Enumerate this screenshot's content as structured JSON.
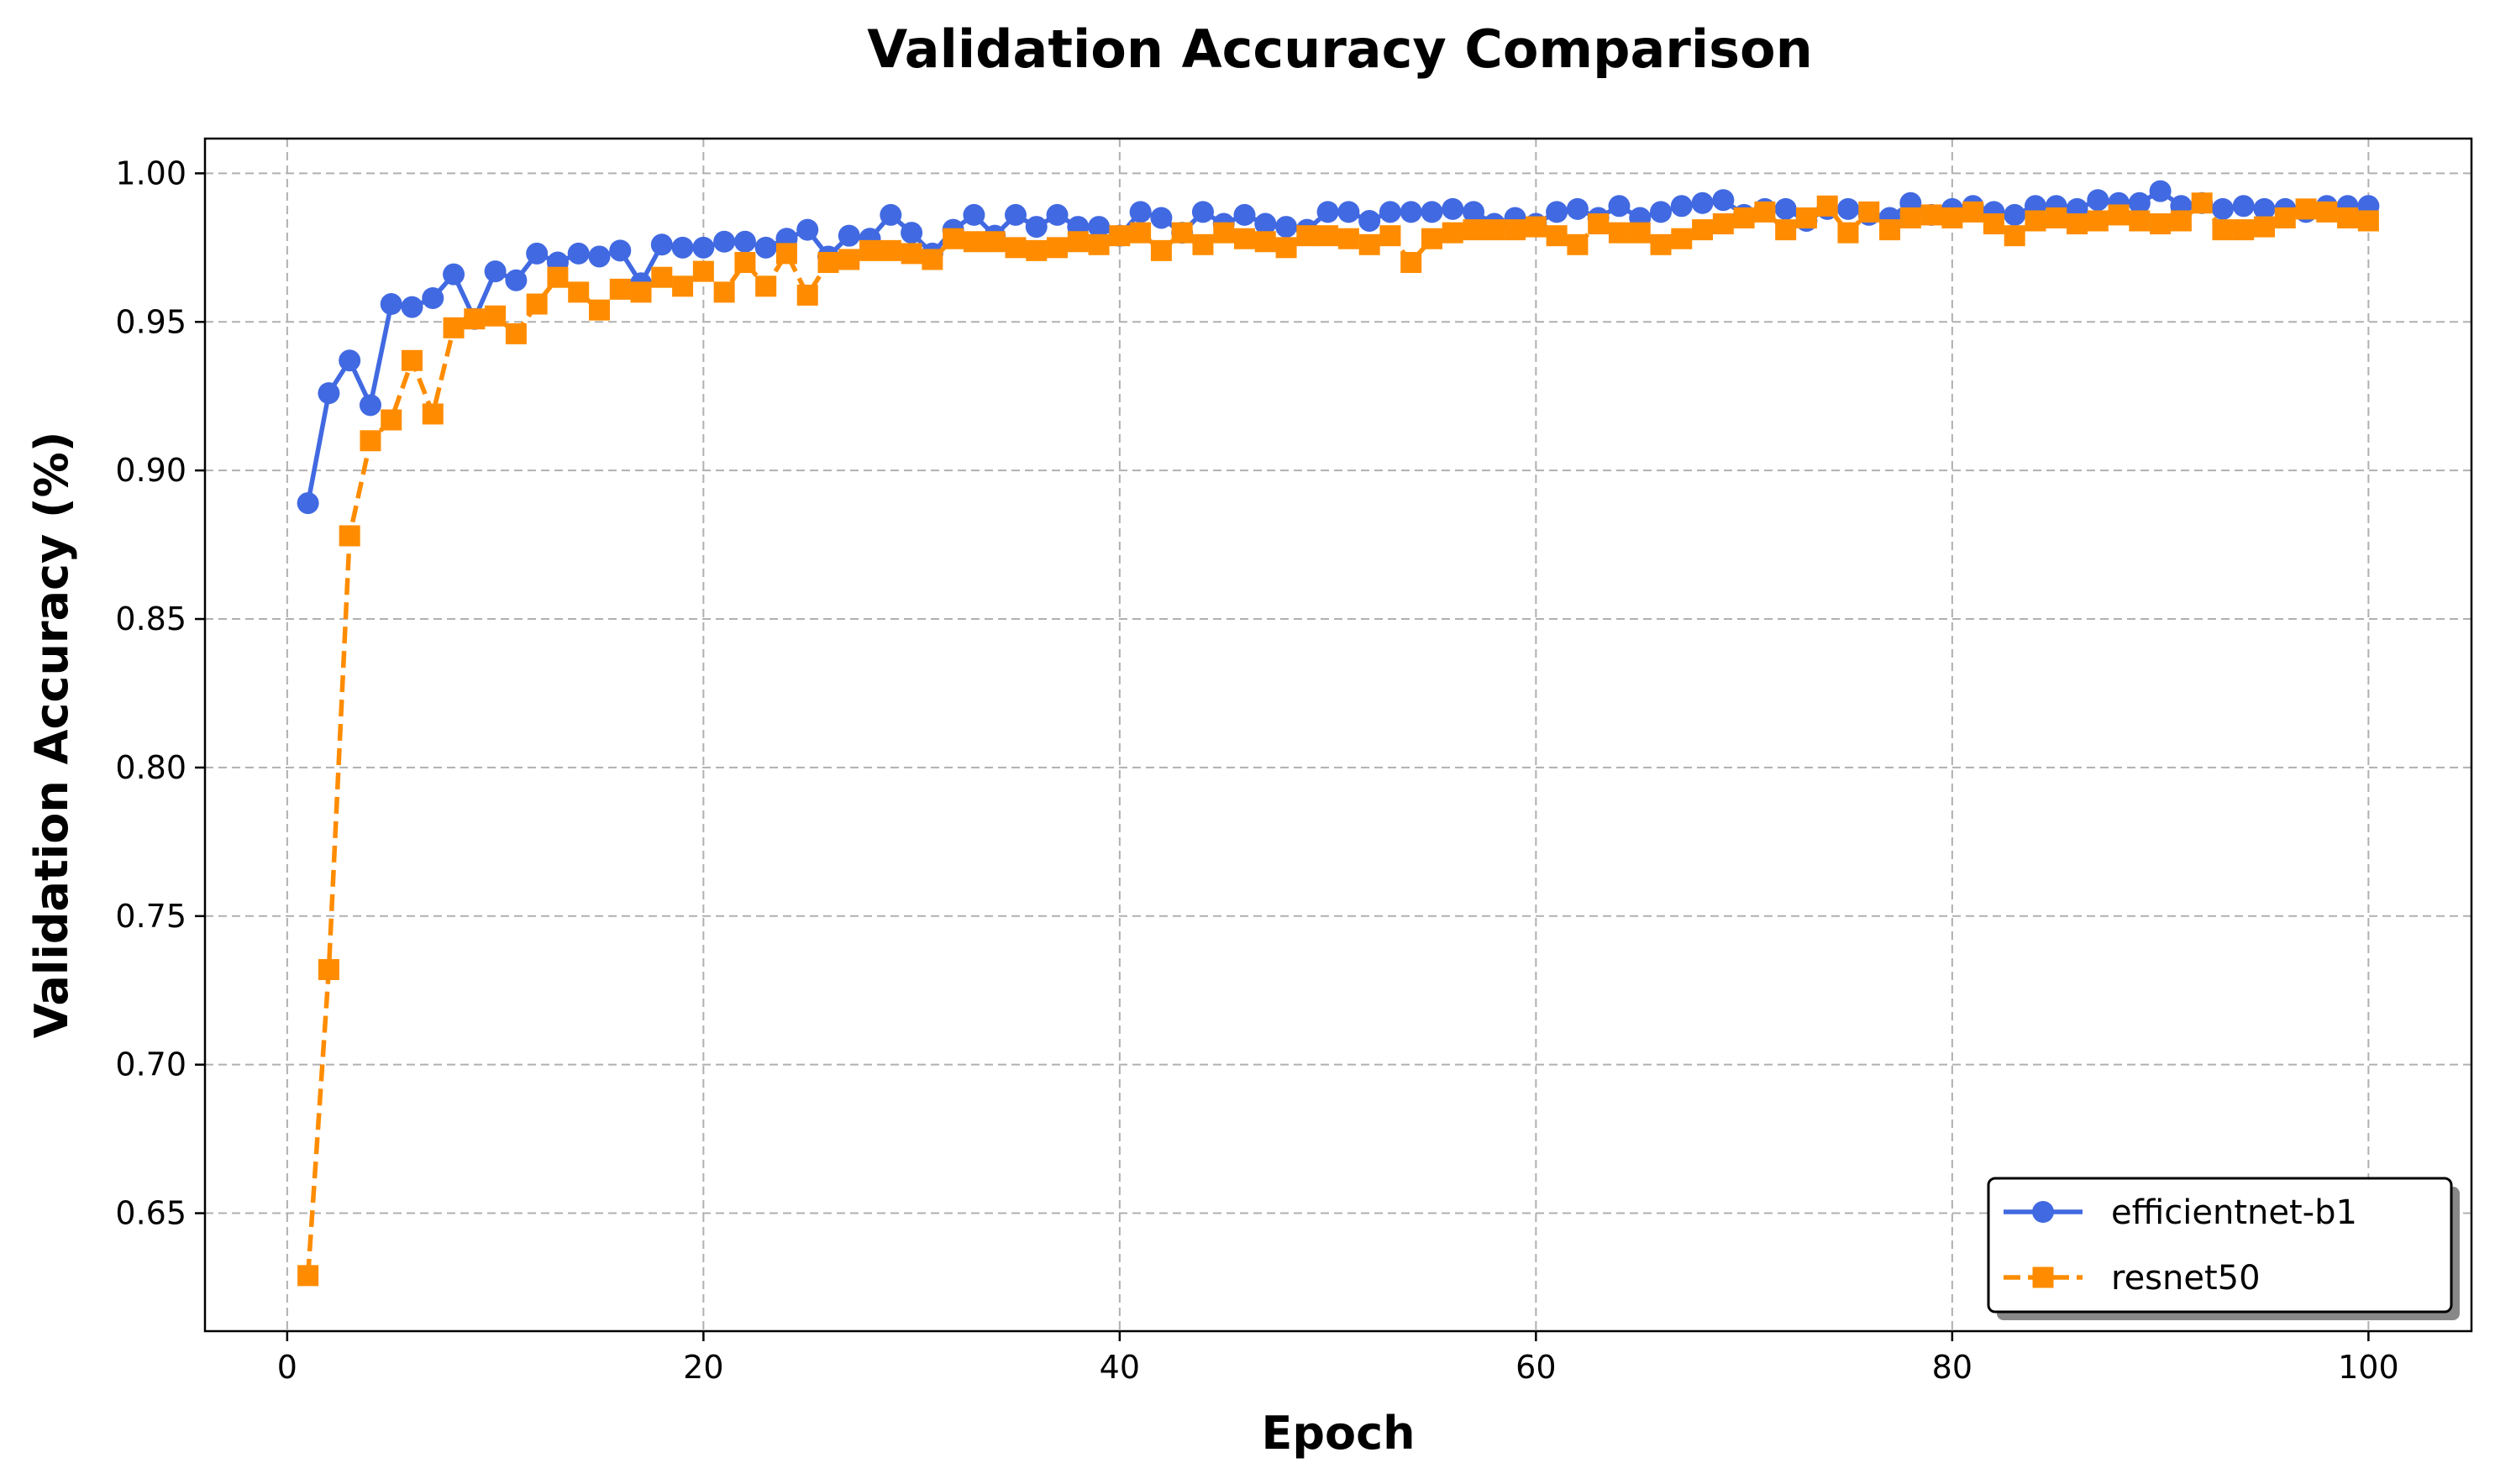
{
  "chart_data": {
    "type": "line",
    "title": "Validation Accuracy Comparison",
    "xlabel": "Epoch",
    "ylabel": "Validation Accuracy (%)",
    "xlim": [
      -3.95,
      104.95
    ],
    "ylim": [
      0.6103,
      1.0117
    ],
    "xticks": [
      0,
      20,
      40,
      60,
      80,
      100
    ],
    "xtick_labels": [
      "0",
      "20",
      "40",
      "60",
      "80",
      "100"
    ],
    "yticks": [
      0.65,
      0.7,
      0.75,
      0.8,
      0.85,
      0.9,
      0.95,
      1.0
    ],
    "ytick_labels": [
      "0.65",
      "0.70",
      "0.75",
      "0.80",
      "0.85",
      "0.90",
      "0.95",
      "1.00"
    ],
    "grid": true,
    "legend_position": "bottom-right",
    "x": [
      1,
      2,
      3,
      4,
      5,
      6,
      7,
      8,
      9,
      10,
      11,
      12,
      13,
      14,
      15,
      16,
      17,
      18,
      19,
      20,
      21,
      22,
      23,
      24,
      25,
      26,
      27,
      28,
      29,
      30,
      31,
      32,
      33,
      34,
      35,
      36,
      37,
      38,
      39,
      40,
      41,
      42,
      43,
      44,
      45,
      46,
      47,
      48,
      49,
      50,
      51,
      52,
      53,
      54,
      55,
      56,
      57,
      58,
      59,
      60,
      61,
      62,
      63,
      64,
      65,
      66,
      67,
      68,
      69,
      70,
      71,
      72,
      73,
      74,
      75,
      76,
      77,
      78,
      79,
      80,
      81,
      82,
      83,
      84,
      85,
      86,
      87,
      88,
      89,
      90,
      91,
      92,
      93,
      94,
      95,
      96,
      97,
      98,
      99,
      100
    ],
    "series": [
      {
        "name": "efficientnet-b1",
        "color": "#4169E1",
        "line_style": "solid",
        "marker": "circle",
        "values": [
          0.889,
          0.926,
          0.937,
          0.922,
          0.956,
          0.955,
          0.958,
          0.966,
          0.951,
          0.967,
          0.964,
          0.973,
          0.97,
          0.973,
          0.972,
          0.974,
          0.963,
          0.976,
          0.975,
          0.975,
          0.977,
          0.977,
          0.975,
          0.978,
          0.981,
          0.972,
          0.979,
          0.978,
          0.986,
          0.98,
          0.973,
          0.981,
          0.986,
          0.979,
          0.986,
          0.982,
          0.986,
          0.982,
          0.982,
          0.979,
          0.987,
          0.985,
          0.98,
          0.987,
          0.983,
          0.986,
          0.983,
          0.982,
          0.981,
          0.987,
          0.987,
          0.984,
          0.987,
          0.987,
          0.987,
          0.988,
          0.987,
          0.983,
          0.985,
          0.983,
          0.987,
          0.988,
          0.985,
          0.989,
          0.985,
          0.987,
          0.989,
          0.99,
          0.991,
          0.986,
          0.988,
          0.988,
          0.984,
          0.988,
          0.988,
          0.986,
          0.985,
          0.99,
          0.986,
          0.988,
          0.989,
          0.987,
          0.986,
          0.989,
          0.989,
          0.988,
          0.991,
          0.99,
          0.99,
          0.994,
          0.989,
          0.99,
          0.988,
          0.989,
          0.988,
          0.988,
          0.987,
          0.989,
          0.989,
          0.989
        ]
      },
      {
        "name": "resnet50",
        "color": "#FF8C00",
        "line_style": "dashed",
        "marker": "square",
        "values": [
          0.629,
          0.732,
          0.878,
          0.91,
          0.917,
          0.937,
          0.919,
          0.948,
          0.951,
          0.952,
          0.946,
          0.956,
          0.965,
          0.96,
          0.954,
          0.961,
          0.96,
          0.965,
          0.962,
          0.967,
          0.96,
          0.97,
          0.962,
          0.973,
          0.959,
          0.97,
          0.971,
          0.974,
          0.974,
          0.973,
          0.971,
          0.978,
          0.977,
          0.977,
          0.975,
          0.974,
          0.975,
          0.977,
          0.976,
          0.979,
          0.98,
          0.974,
          0.98,
          0.976,
          0.98,
          0.978,
          0.977,
          0.975,
          0.979,
          0.979,
          0.978,
          0.976,
          0.979,
          0.97,
          0.978,
          0.98,
          0.981,
          0.981,
          0.981,
          0.982,
          0.979,
          0.976,
          0.983,
          0.98,
          0.98,
          0.976,
          0.978,
          0.981,
          0.983,
          0.985,
          0.987,
          0.981,
          0.985,
          0.989,
          0.98,
          0.987,
          0.981,
          0.985,
          0.986,
          0.985,
          0.987,
          0.983,
          0.979,
          0.984,
          0.985,
          0.983,
          0.984,
          0.986,
          0.984,
          0.983,
          0.984,
          0.99,
          0.981,
          0.981,
          0.982,
          0.985,
          0.988,
          0.987,
          0.985,
          0.984
        ]
      }
    ]
  }
}
